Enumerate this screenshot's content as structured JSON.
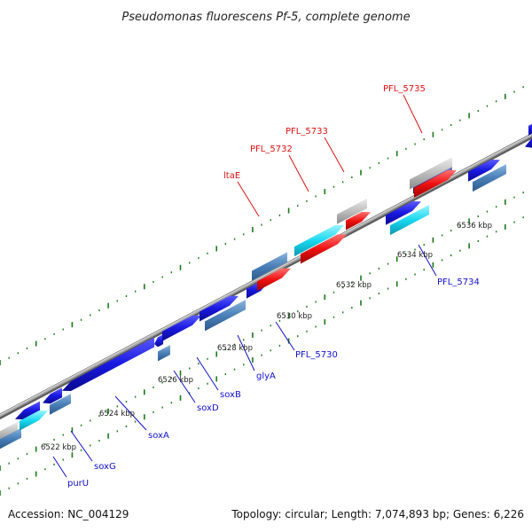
{
  "title": "Pseudomonas fluorescens Pf-5, complete genome",
  "footer": {
    "accession": "Accession: NC_004129",
    "summary": "Topology: circular; Length: 7,074,893 bp; Genes: 6,226"
  },
  "colors": {
    "backbone": "#8a8a8a",
    "dots": "#1a7a1a",
    "label_red": "#dd1111",
    "label_blue": "#1010cc",
    "gene_blue": "#1818e0",
    "gene_steel": "#4a80b8",
    "gene_cyan": "#18d8f0",
    "gene_red": "#ee1111",
    "gene_gray": "#bdbdbd",
    "gene_navy": "#3a3a90"
  },
  "ticks": [
    {
      "label": "6522 kbp"
    },
    {
      "label": "6524 kbp"
    },
    {
      "label": "6526 kbp"
    },
    {
      "label": "6528 kbp"
    },
    {
      "label": "6530 kbp"
    },
    {
      "label": "6532 kbp"
    },
    {
      "label": "6534 kbp"
    },
    {
      "label": "6536 kbp"
    }
  ],
  "gene_labels": [
    {
      "name": "purU"
    },
    {
      "name": "soxG"
    },
    {
      "name": "soxA"
    },
    {
      "name": "soxD"
    },
    {
      "name": "soxB"
    },
    {
      "name": "glyA"
    },
    {
      "name": "PFL_5730"
    },
    {
      "name": "PFL_5734"
    },
    {
      "name": "ltaE"
    },
    {
      "name": "PFL_5732"
    },
    {
      "name": "PFL_5733"
    },
    {
      "name": "PFL_5735"
    }
  ]
}
